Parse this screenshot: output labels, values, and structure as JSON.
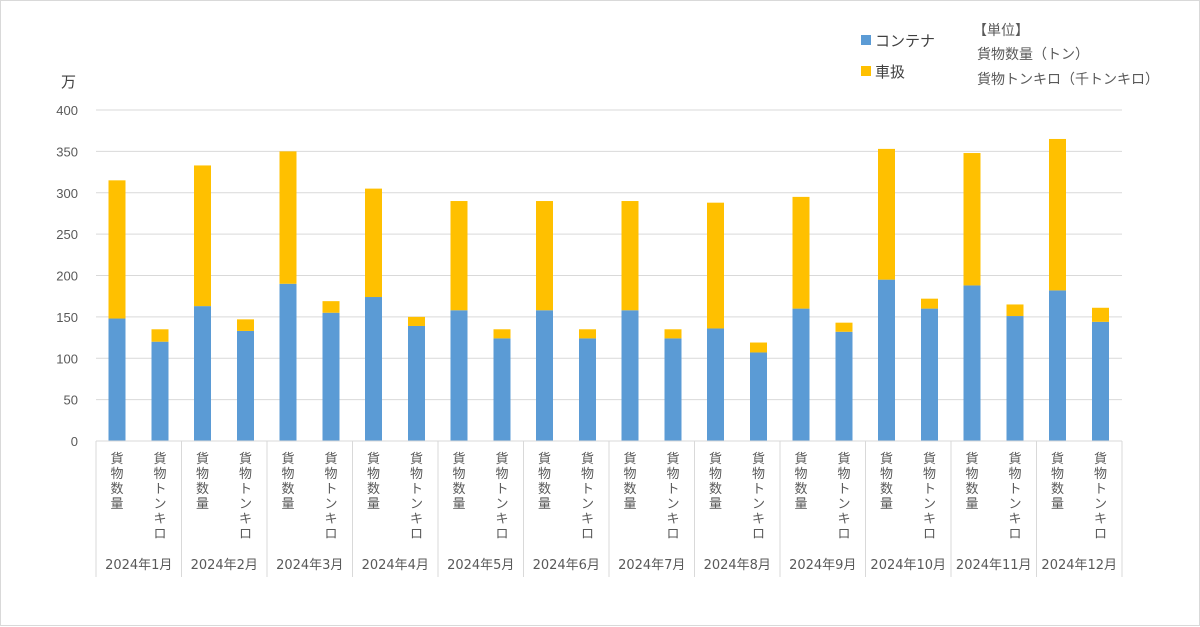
{
  "chart_data": {
    "type": "bar",
    "stacked": true,
    "ylabel": "万",
    "ylim": [
      0,
      400
    ],
    "yticks": [
      0,
      50,
      100,
      150,
      200,
      250,
      300,
      350,
      400
    ],
    "grid": true,
    "legend_position": "top-right",
    "sub_categories": [
      "貨物数量",
      "貨物トンキロ"
    ],
    "months": [
      "2024年1月",
      "2024年2月",
      "2024年3月",
      "2024年4月",
      "2024年5月",
      "2024年6月",
      "2024年7月",
      "2024年8月",
      "2024年9月",
      "2024年10月",
      "2024年11月",
      "2024年12月"
    ],
    "series": [
      {
        "name": "コンテナ",
        "color": "#5b9bd5",
        "values": [
          [
            148,
            120
          ],
          [
            163,
            133
          ],
          [
            190,
            155
          ],
          [
            174,
            139
          ],
          [
            158,
            124
          ],
          [
            158,
            124
          ],
          [
            158,
            124
          ],
          [
            136,
            107
          ],
          [
            160,
            132
          ],
          [
            195,
            160
          ],
          [
            188,
            151
          ],
          [
            182,
            144
          ]
        ]
      },
      {
        "name": "車扱",
        "color": "#ffc000",
        "values": [
          [
            167,
            15
          ],
          [
            170,
            14
          ],
          [
            160,
            14
          ],
          [
            131,
            11
          ],
          [
            132,
            11
          ],
          [
            132,
            11
          ],
          [
            132,
            11
          ],
          [
            152,
            12
          ],
          [
            135,
            11
          ],
          [
            158,
            12
          ],
          [
            160,
            14
          ],
          [
            183,
            17
          ]
        ]
      }
    ],
    "unit_note": {
      "title": "【単位】",
      "lines": [
        "貨物数量（トン）",
        "貨物トンキロ（千トンキロ）"
      ]
    }
  }
}
